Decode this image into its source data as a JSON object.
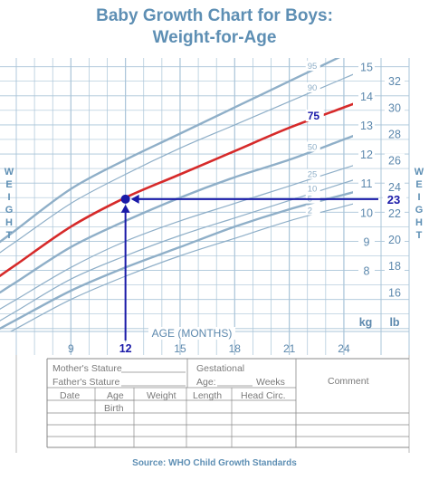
{
  "title": {
    "line1": "Baby Growth Chart for Boys:",
    "line2": "Weight-for-Age"
  },
  "side_label_left": "WEIGHT",
  "side_label_right": "WEIGHT",
  "source": "Source: WHO Child Growth Standards",
  "colors": {
    "title": "#5e8fb4",
    "grid": "#a9c4d8",
    "curve": "#8fafc8",
    "highlight": "#d62a2a",
    "marker": "#1a1aa8",
    "axis_text": "#5c88ad",
    "form_line": "#8a8a8a"
  },
  "chart_data": {
    "type": "line",
    "title": "Baby Growth Chart for Boys: Weight-for-Age",
    "xlabel": "AGE (MONTHS)",
    "x_ticks": [
      9,
      12,
      15,
      18,
      21,
      24
    ],
    "xlim": [
      6,
      24.5
    ],
    "kg_label": "kg",
    "lb_label": "lb",
    "kg_ticks": [
      8,
      9,
      10,
      11,
      12,
      13,
      14,
      15
    ],
    "lb_ticks": [
      16,
      18,
      20,
      22,
      24,
      26,
      28,
      30,
      32
    ],
    "ylim_kg": [
      5.9,
      15.3
    ],
    "grid": true,
    "series": [
      {
        "name": "95",
        "x": [
          6,
          9,
          12,
          15,
          18,
          21,
          24
        ],
        "y": [
          9.4,
          10.8,
          11.8,
          12.7,
          13.6,
          14.5,
          15.4
        ]
      },
      {
        "name": "90",
        "x": [
          6,
          9,
          12,
          15,
          18,
          21,
          24
        ],
        "y": [
          9.0,
          10.3,
          11.3,
          12.2,
          13.0,
          13.8,
          14.6
        ]
      },
      {
        "name": "75",
        "x": [
          6,
          9,
          12,
          15,
          18,
          21,
          24
        ],
        "y": [
          8.2,
          9.5,
          10.5,
          11.3,
          12.1,
          12.9,
          13.6
        ],
        "highlight": true
      },
      {
        "name": "50",
        "x": [
          6,
          9,
          12,
          15,
          18,
          21,
          24
        ],
        "y": [
          7.6,
          8.8,
          9.7,
          10.5,
          11.2,
          11.8,
          12.5
        ]
      },
      {
        "name": "25",
        "x": [
          6,
          9,
          12,
          15,
          18,
          21,
          24
        ],
        "y": [
          7.0,
          8.1,
          9.0,
          9.7,
          10.3,
          10.9,
          11.5
        ]
      },
      {
        "name": "10",
        "x": [
          6,
          9,
          12,
          15,
          18,
          21,
          24
        ],
        "y": [
          6.6,
          7.7,
          8.5,
          9.2,
          9.8,
          10.4,
          11.0
        ]
      },
      {
        "name": "5",
        "x": [
          6,
          9,
          12,
          15,
          18,
          21,
          24
        ],
        "y": [
          6.3,
          7.3,
          8.1,
          8.8,
          9.5,
          10.1,
          10.6
        ]
      },
      {
        "name": "2",
        "x": [
          6,
          9,
          12,
          15,
          18,
          21,
          24
        ],
        "y": [
          6.0,
          7.0,
          7.8,
          8.5,
          9.1,
          9.7,
          10.2
        ]
      }
    ],
    "annotation": {
      "point": {
        "x": 12,
        "y": 10.45
      },
      "x_label": "12",
      "value_label": "23",
      "value_label_unit": "lb"
    }
  },
  "form": {
    "mothers_stature": "Mother's Stature",
    "fathers_stature": "Father's Stature",
    "gestational": "Gestational",
    "age": "Age:",
    "weeks": "Weeks",
    "comment": "Comment",
    "headers": {
      "date": "Date",
      "age_line1": "Age",
      "age_line2": "Birth",
      "weight": "Weight",
      "length": "Length",
      "head_circ": "Head Circ."
    }
  }
}
